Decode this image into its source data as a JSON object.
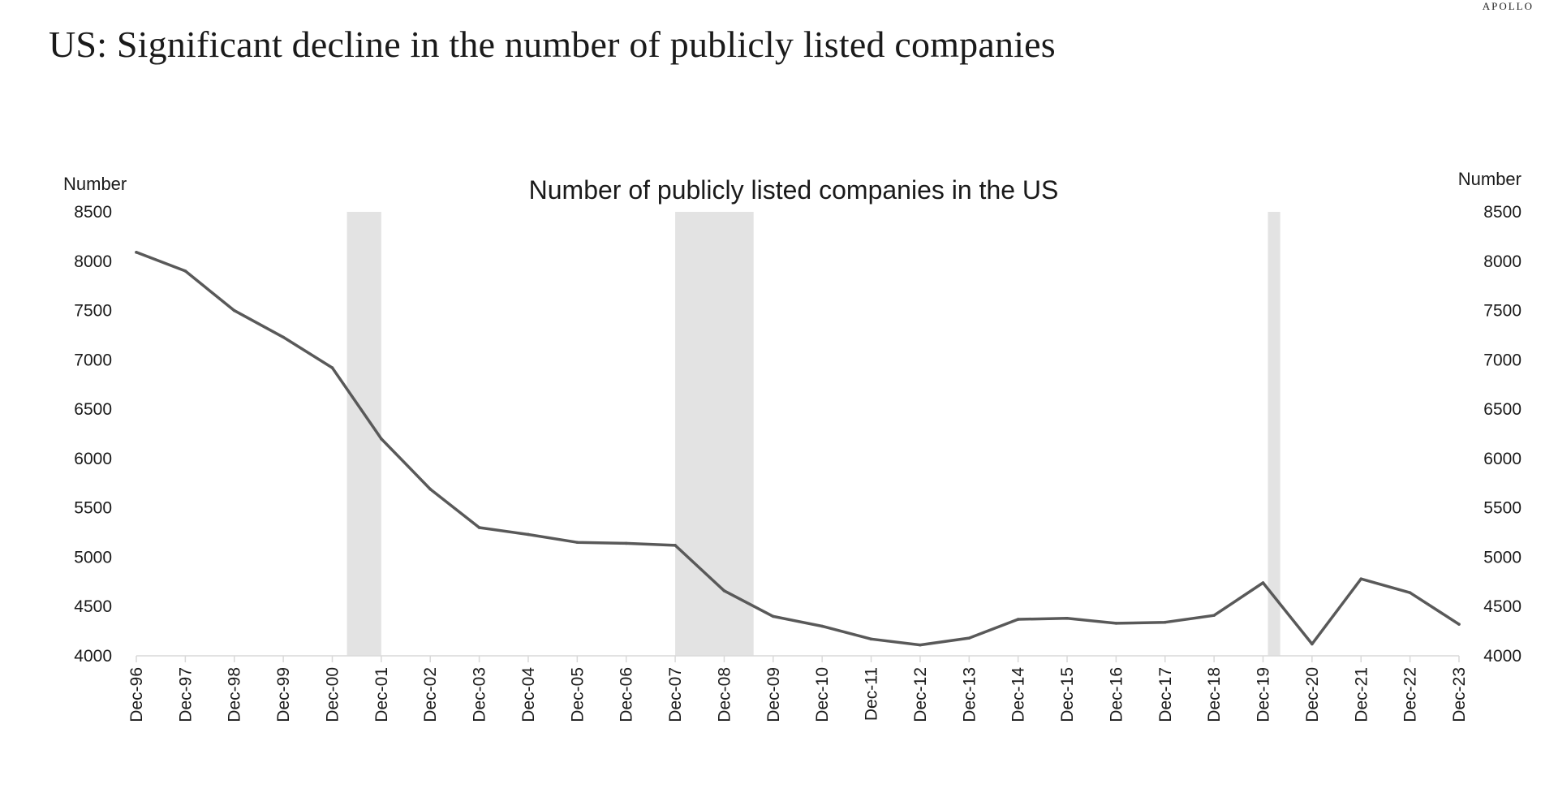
{
  "brand": "APOLLO",
  "headline": "US: Significant decline in the number of publicly listed companies",
  "colors": {
    "line": "#595959",
    "recession": "#e3e3e3",
    "axis": "#d9d9d9",
    "text": "#1a1a1a"
  },
  "chart_data": {
    "type": "line",
    "title": "Number of publicly listed companies in the US",
    "ylabel_left": "Number",
    "ylabel_right": "Number",
    "categories": [
      "Dec-96",
      "Dec-97",
      "Dec-98",
      "Dec-99",
      "Dec-00",
      "Dec-01",
      "Dec-02",
      "Dec-03",
      "Dec-04",
      "Dec-05",
      "Dec-06",
      "Dec-07",
      "Dec-08",
      "Dec-09",
      "Dec-10",
      "Dec-11",
      "Dec-12",
      "Dec-13",
      "Dec-14",
      "Dec-15",
      "Dec-16",
      "Dec-17",
      "Dec-18",
      "Dec-19",
      "Dec-20",
      "Dec-21",
      "Dec-22",
      "Dec-23"
    ],
    "series": [
      {
        "values": [
          8090,
          7900,
          7500,
          7230,
          6920,
          6200,
          5690,
          5300,
          5230,
          5150,
          5140,
          5120,
          4660,
          4400,
          4300,
          4170,
          4110,
          4180,
          4370,
          4380,
          4330,
          4340,
          4410,
          4740,
          4120,
          4780,
          4640,
          4320
        ]
      }
    ],
    "ylim": [
      4000,
      8500
    ],
    "yticks": [
      8500,
      8000,
      7500,
      7000,
      6500,
      6000,
      5500,
      5000,
      4500,
      4000
    ],
    "recessions": [
      {
        "start": 4.3,
        "end": 5.0
      },
      {
        "start": 11.0,
        "end": 12.6
      },
      {
        "start": 23.1,
        "end": 23.35
      }
    ],
    "grid": false,
    "legend": "none"
  }
}
